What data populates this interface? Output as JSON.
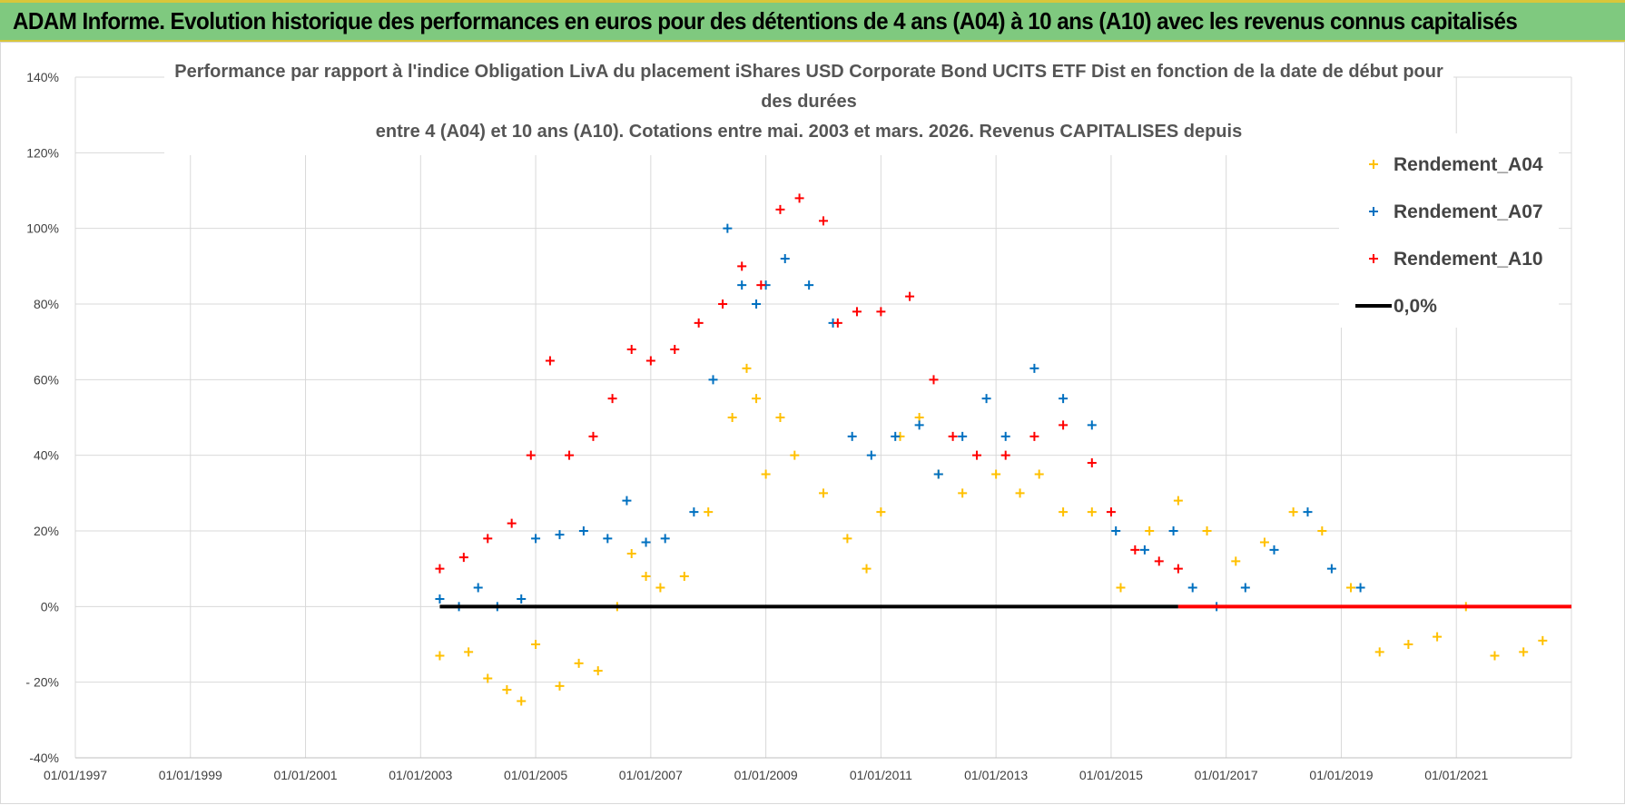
{
  "header": {
    "title": "ADAM Informe. Evolution historique des performances en euros pour des détentions de 4 ans (A04) à 10 ans (A10) avec les revenus connus capitalisés"
  },
  "chart_data": {
    "type": "scatter",
    "title_lines": [
      "Performance par rapport à l'indice Obligation LivA  du placement iShares USD Corporate Bond UCITS ETF Dist en fonction de la date de début pour",
      "des durées",
      "entre 4 (A04) et 10 ans (A10). Cotations entre mai. 2003 et mars. 2026. Revenus CAPITALISES depuis"
    ],
    "xlabel": "",
    "ylabel": "",
    "x_ticks": [
      "01/01/1997",
      "01/01/1999",
      "01/01/2001",
      "01/01/2003",
      "01/01/2005",
      "01/01/2007",
      "01/01/2009",
      "01/01/2011",
      "01/01/2013",
      "01/01/2015",
      "01/01/2017",
      "01/01/2019",
      "01/01/2021"
    ],
    "y_ticks": [
      "140%",
      "120%",
      "100%",
      "80%",
      "60%",
      "40%",
      "20%",
      "0%",
      "- 20%",
      "-40%"
    ],
    "xlim": [
      "1997-01-01",
      "2023-01-01"
    ],
    "ylim": [
      -40,
      140
    ],
    "grid": true,
    "legend_position": "top-right",
    "series": [
      {
        "name": "Rendement_A04",
        "color": "#ffc000",
        "marker": "plus",
        "points": [
          [
            "2003-05",
            -13
          ],
          [
            "2003-11",
            -12
          ],
          [
            "2004-03",
            -19
          ],
          [
            "2004-07",
            -22
          ],
          [
            "2004-10",
            -25
          ],
          [
            "2005-01",
            -10
          ],
          [
            "2005-06",
            -21
          ],
          [
            "2005-10",
            -15
          ],
          [
            "2006-02",
            -17
          ],
          [
            "2006-06",
            0
          ],
          [
            "2006-09",
            14
          ],
          [
            "2006-12",
            8
          ],
          [
            "2007-03",
            5
          ],
          [
            "2007-08",
            8
          ],
          [
            "2008-01",
            25
          ],
          [
            "2008-06",
            50
          ],
          [
            "2008-09",
            63
          ],
          [
            "2008-11",
            55
          ],
          [
            "2009-01",
            35
          ],
          [
            "2009-04",
            50
          ],
          [
            "2009-07",
            40
          ],
          [
            "2010-01",
            30
          ],
          [
            "2010-06",
            18
          ],
          [
            "2010-10",
            10
          ],
          [
            "2011-01",
            25
          ],
          [
            "2011-05",
            45
          ],
          [
            "2011-09",
            50
          ],
          [
            "2012-01",
            35
          ],
          [
            "2012-06",
            30
          ],
          [
            "2013-01",
            35
          ],
          [
            "2013-06",
            30
          ],
          [
            "2013-10",
            35
          ],
          [
            "2014-03",
            25
          ],
          [
            "2014-09",
            25
          ],
          [
            "2015-03",
            5
          ],
          [
            "2015-09",
            20
          ],
          [
            "2016-03",
            28
          ],
          [
            "2016-09",
            20
          ],
          [
            "2017-03",
            12
          ],
          [
            "2017-09",
            17
          ],
          [
            "2018-03",
            25
          ],
          [
            "2018-09",
            20
          ],
          [
            "2019-03",
            5
          ],
          [
            "2019-09",
            -12
          ],
          [
            "2020-03",
            -10
          ],
          [
            "2020-09",
            -8
          ],
          [
            "2021-03",
            0
          ],
          [
            "2021-09",
            -13
          ],
          [
            "2022-03",
            -12
          ],
          [
            "2022-07",
            -9
          ]
        ]
      },
      {
        "name": "Rendement_A07",
        "color": "#0070c0",
        "marker": "plus",
        "points": [
          [
            "2003-05",
            2
          ],
          [
            "2003-09",
            0
          ],
          [
            "2004-01",
            5
          ],
          [
            "2004-05",
            0
          ],
          [
            "2004-10",
            2
          ],
          [
            "2005-01",
            18
          ],
          [
            "2005-06",
            19
          ],
          [
            "2005-11",
            20
          ],
          [
            "2006-04",
            18
          ],
          [
            "2006-08",
            28
          ],
          [
            "2006-12",
            17
          ],
          [
            "2007-04",
            18
          ],
          [
            "2007-10",
            25
          ],
          [
            "2008-02",
            60
          ],
          [
            "2008-05",
            100
          ],
          [
            "2008-08",
            85
          ],
          [
            "2008-11",
            80
          ],
          [
            "2009-01",
            85
          ],
          [
            "2009-05",
            92
          ],
          [
            "2009-10",
            85
          ],
          [
            "2010-03",
            75
          ],
          [
            "2010-07",
            45
          ],
          [
            "2010-11",
            40
          ],
          [
            "2011-04",
            45
          ],
          [
            "2011-09",
            48
          ],
          [
            "2012-01",
            35
          ],
          [
            "2012-06",
            45
          ],
          [
            "2012-11",
            55
          ],
          [
            "2013-03",
            45
          ],
          [
            "2013-09",
            63
          ],
          [
            "2014-03",
            55
          ],
          [
            "2014-09",
            48
          ],
          [
            "2015-02",
            20
          ],
          [
            "2015-08",
            15
          ],
          [
            "2016-02",
            20
          ],
          [
            "2016-06",
            5
          ],
          [
            "2016-11",
            0
          ],
          [
            "2017-05",
            5
          ],
          [
            "2017-11",
            15
          ],
          [
            "2018-06",
            25
          ],
          [
            "2018-11",
            10
          ],
          [
            "2019-05",
            5
          ]
        ]
      },
      {
        "name": "Rendement_A10",
        "color": "#ff0000",
        "marker": "plus",
        "points": [
          [
            "2003-05",
            10
          ],
          [
            "2003-10",
            13
          ],
          [
            "2004-03",
            18
          ],
          [
            "2004-08",
            22
          ],
          [
            "2004-12",
            40
          ],
          [
            "2005-04",
            65
          ],
          [
            "2005-08",
            40
          ],
          [
            "2006-01",
            45
          ],
          [
            "2006-05",
            55
          ],
          [
            "2006-09",
            68
          ],
          [
            "2007-01",
            65
          ],
          [
            "2007-06",
            68
          ],
          [
            "2007-11",
            75
          ],
          [
            "2008-04",
            80
          ],
          [
            "2008-08",
            90
          ],
          [
            "2008-12",
            85
          ],
          [
            "2009-04",
            105
          ],
          [
            "2009-08",
            108
          ],
          [
            "2010-01",
            102
          ],
          [
            "2010-04",
            75
          ],
          [
            "2010-08",
            78
          ],
          [
            "2011-01",
            78
          ],
          [
            "2011-07",
            82
          ],
          [
            "2011-12",
            60
          ],
          [
            "2012-04",
            45
          ],
          [
            "2012-09",
            40
          ],
          [
            "2013-03",
            40
          ],
          [
            "2013-09",
            45
          ],
          [
            "2014-03",
            48
          ],
          [
            "2014-09",
            38
          ],
          [
            "2015-01",
            25
          ],
          [
            "2015-06",
            15
          ],
          [
            "2015-11",
            12
          ],
          [
            "2016-03",
            10
          ]
        ]
      },
      {
        "name": "0,0%",
        "color": "#000000",
        "marker": "line",
        "points": [
          [
            "2003-05",
            0
          ],
          [
            "2016-03",
            0
          ]
        ]
      },
      {
        "name": "",
        "color": "#ff0000",
        "marker": "line",
        "points": [
          [
            "2016-03",
            0
          ],
          [
            "2023-01",
            0
          ]
        ]
      }
    ]
  }
}
